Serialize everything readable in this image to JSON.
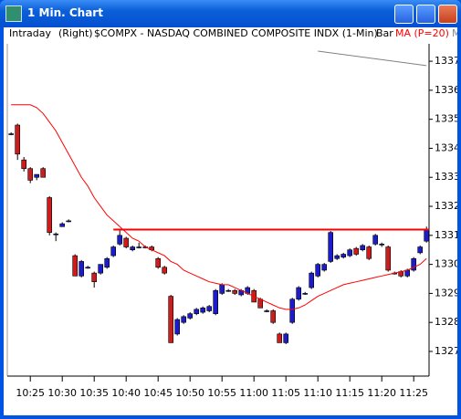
{
  "window": {
    "title": "1 Min. Chart"
  },
  "header": [
    "Intraday",
    "(Right)",
    "$COMPX - NASDAQ COMBINED COMPOSITE INDX (1-Min)",
    "Bar",
    "M"
  ],
  "chart_data": {
    "type": "candlestick",
    "x": [
      622,
      623,
      624,
      625,
      626,
      627,
      628,
      629,
      630,
      631,
      632,
      633,
      634,
      635,
      636,
      637,
      638,
      639,
      640,
      641,
      642,
      643,
      644,
      645,
      646,
      647,
      648,
      649,
      650,
      651,
      652,
      653,
      654,
      655,
      656,
      657,
      658,
      659,
      660,
      661,
      662,
      663,
      664,
      665,
      666,
      667,
      668,
      669,
      670,
      671,
      672,
      673,
      674,
      675,
      676,
      677,
      678,
      679,
      680,
      681,
      682,
      683,
      684,
      685,
      686,
      687
    ],
    "open": [
      1334.5,
      1334.8,
      1333.6,
      1333.3,
      1333.0,
      1333.3,
      1332.3,
      1331.05,
      1331.3,
      1331.5,
      1330.3,
      1329.6,
      1329.9,
      1329.7,
      1329.7,
      1329.9,
      1330.3,
      1330.7,
      1330.9,
      1330.5,
      1330.6,
      1330.6,
      1330.6,
      1330.2,
      1329.9,
      1328.9,
      1327.6,
      1328.0,
      1328.15,
      1328.3,
      1328.35,
      1328.4,
      1328.3,
      1329.0,
      1329.1,
      1329.1,
      1328.95,
      1329.0,
      1329.1,
      1328.8,
      1328.4,
      1328.4,
      1327.6,
      1327.3,
      1328.0,
      1328.8,
      1329.0,
      1329.2,
      1329.6,
      1329.8,
      1330.1,
      1330.2,
      1330.25,
      1330.3,
      1330.55,
      1330.5,
      1330.6,
      1330.7,
      1330.7,
      1330.6,
      1329.7,
      1329.75,
      1329.6,
      1329.8,
      1330.4,
      1330.8
    ],
    "high": [
      1334.55,
      1334.85,
      1333.7,
      1333.35,
      1333.1,
      1333.35,
      1332.35,
      1331.1,
      1331.45,
      1331.55,
      1330.35,
      1330.15,
      1329.95,
      1329.75,
      1330.0,
      1330.25,
      1330.65,
      1331.2,
      1330.95,
      1330.65,
      1330.75,
      1330.65,
      1330.65,
      1330.25,
      1329.95,
      1328.95,
      1328.15,
      1328.25,
      1328.35,
      1328.5,
      1328.55,
      1328.6,
      1329.15,
      1329.35,
      1329.15,
      1329.15,
      1329.15,
      1329.25,
      1329.15,
      1328.85,
      1328.45,
      1328.45,
      1327.65,
      1327.65,
      1328.85,
      1329.25,
      1329.05,
      1329.75,
      1330.05,
      1330.05,
      1331.15,
      1330.35,
      1330.4,
      1330.55,
      1330.6,
      1330.7,
      1330.65,
      1331.05,
      1330.75,
      1330.65,
      1329.75,
      1329.8,
      1329.85,
      1330.25,
      1330.65,
      1331.3
    ],
    "low": [
      1334.45,
      1333.6,
      1333.2,
      1332.8,
      1332.9,
      1333.0,
      1331.0,
      1330.8,
      1331.3,
      1331.45,
      1329.6,
      1329.55,
      1329.85,
      1329.2,
      1329.65,
      1329.85,
      1330.25,
      1330.65,
      1330.55,
      1330.45,
      1330.55,
      1330.55,
      1330.45,
      1329.85,
      1329.65,
      1327.3,
      1327.55,
      1327.95,
      1328.1,
      1328.25,
      1328.3,
      1328.35,
      1328.25,
      1328.95,
      1329.05,
      1328.95,
      1328.9,
      1328.95,
      1328.7,
      1328.5,
      1328.35,
      1327.95,
      1327.3,
      1327.25,
      1327.95,
      1328.75,
      1328.95,
      1329.15,
      1329.55,
      1329.75,
      1330.05,
      1330.15,
      1330.2,
      1330.25,
      1330.3,
      1330.45,
      1330.15,
      1330.65,
      1330.6,
      1329.75,
      1329.65,
      1329.55,
      1329.55,
      1329.75,
      1330.35,
      1330.75
    ],
    "close": [
      1334.5,
      1333.8,
      1333.3,
      1332.9,
      1333.1,
      1333.0,
      1331.1,
      1331.05,
      1331.4,
      1331.5,
      1329.6,
      1330.1,
      1329.9,
      1329.4,
      1330.0,
      1330.2,
      1330.6,
      1331.0,
      1330.6,
      1330.6,
      1330.6,
      1330.6,
      1330.5,
      1329.9,
      1329.7,
      1327.3,
      1328.1,
      1328.2,
      1328.3,
      1328.45,
      1328.5,
      1328.55,
      1329.1,
      1329.3,
      1329.1,
      1329.0,
      1329.1,
      1329.2,
      1328.7,
      1328.5,
      1328.4,
      1328.0,
      1327.3,
      1327.6,
      1328.8,
      1329.2,
      1329.0,
      1329.7,
      1330.0,
      1330.0,
      1331.1,
      1330.3,
      1330.35,
      1330.5,
      1330.35,
      1330.65,
      1330.2,
      1331.0,
      1330.7,
      1329.8,
      1329.7,
      1329.6,
      1329.8,
      1330.2,
      1330.6,
      1331.2
    ],
    "up_color": "#1c1ccc",
    "down_color": "#cc1c1c",
    "ma": {
      "name": "MA (P=20)",
      "color": "#ff0000",
      "values": [
        1335.5,
        1335.5,
        1335.5,
        1335.5,
        1335.4,
        1335.2,
        1334.9,
        1334.6,
        1334.2,
        1333.8,
        1333.4,
        1333.0,
        1332.7,
        1332.3,
        1332.0,
        1331.7,
        1331.5,
        1331.3,
        1331.1,
        1330.9,
        1330.8,
        1330.6,
        1330.5,
        1330.4,
        1330.3,
        1330.1,
        1330.0,
        1329.8,
        1329.7,
        1329.6,
        1329.5,
        1329.4,
        1329.35,
        1329.3,
        1329.3,
        1329.2,
        1329.1,
        1329.0,
        1328.9,
        1328.8,
        1328.7,
        1328.6,
        1328.5,
        1328.45,
        1328.45,
        1328.5,
        1328.6,
        1328.75,
        1328.9,
        1329.0,
        1329.1,
        1329.2,
        1329.3,
        1329.35,
        1329.4,
        1329.45,
        1329.5,
        1329.55,
        1329.6,
        1329.65,
        1329.7,
        1329.75,
        1329.8,
        1329.9,
        1330.0,
        1330.2
      ]
    },
    "hline": {
      "value": 1331.2,
      "from": 638,
      "color": "#ff0000"
    },
    "trend": {
      "x": [
        670,
        687
      ],
      "values": [
        1337.35,
        1336.85
      ],
      "color": "#808080"
    },
    "xlim": [
      621.4,
      687.4
    ],
    "xticks": [
      {
        "value": 625,
        "label": "10:25"
      },
      {
        "value": 630,
        "label": "10:30"
      },
      {
        "value": 635,
        "label": "10:35"
      },
      {
        "value": 640,
        "label": "10:40"
      },
      {
        "value": 645,
        "label": "10:45"
      },
      {
        "value": 650,
        "label": "10:50"
      },
      {
        "value": 655,
        "label": "10:55"
      },
      {
        "value": 660,
        "label": "11:00"
      },
      {
        "value": 665,
        "label": "11:05"
      },
      {
        "value": 670,
        "label": "11:10"
      },
      {
        "value": 675,
        "label": "11:15"
      },
      {
        "value": 680,
        "label": "11:20"
      },
      {
        "value": 685,
        "label": "11:25"
      }
    ],
    "ylim": [
      1326.15,
      1337.6
    ],
    "yticks": [
      1327,
      1328,
      1329,
      1330,
      1331,
      1332,
      1333,
      1334,
      1335,
      1336,
      1337
    ]
  }
}
